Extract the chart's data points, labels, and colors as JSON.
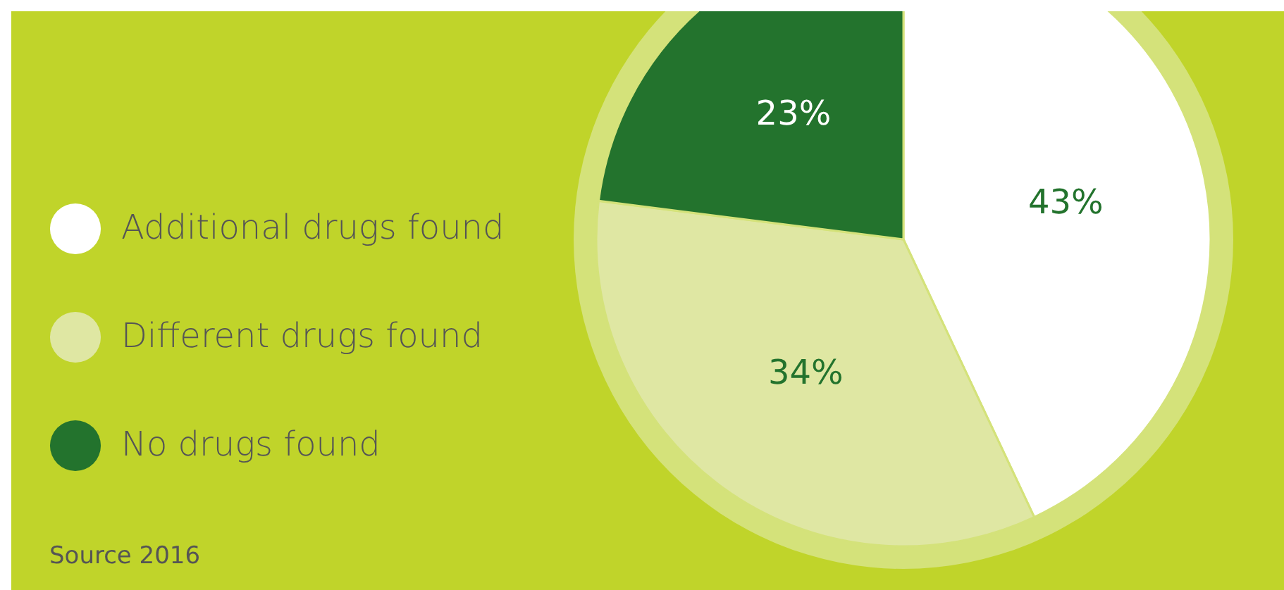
{
  "chart_data": {
    "type": "pie",
    "categories": [
      "Additional drugs found",
      "Different drugs found",
      "No drugs found"
    ],
    "values": [
      43,
      34,
      23
    ],
    "colors": [
      "#ffffff",
      "#dfe7a3",
      "#23732d"
    ],
    "value_labels": [
      "43%",
      "34%",
      "23%"
    ],
    "legend": "left",
    "annotations": [
      "Source 2016"
    ]
  }
}
